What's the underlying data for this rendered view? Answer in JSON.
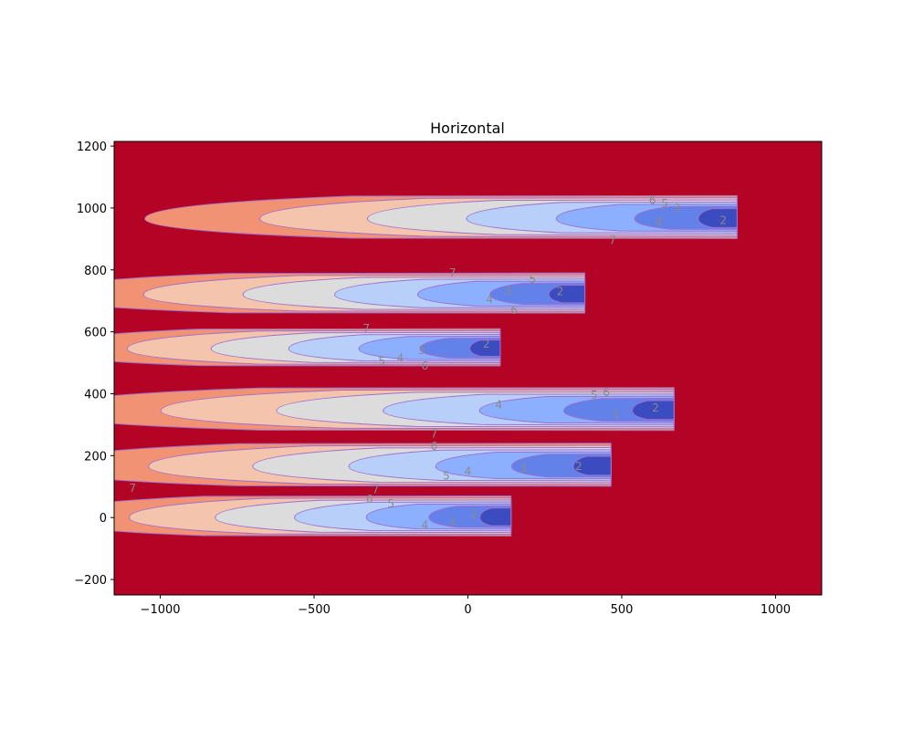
{
  "chart_data": {
    "type": "contour",
    "title": "Horizontal",
    "xlabel": "",
    "ylabel": "",
    "xlim": [
      -1150,
      1150
    ],
    "ylim": [
      -250,
      1215
    ],
    "xticks": [
      -1000,
      -500,
      0,
      500,
      1000
    ],
    "yticks": [
      -200,
      0,
      200,
      400,
      600,
      800,
      1000,
      1200
    ],
    "xtick_labels": [
      "−1000",
      "−500",
      "0",
      "500",
      "1000"
    ],
    "ytick_labels": [
      "−200",
      "0",
      "200",
      "400",
      "600",
      "800",
      "1000",
      "1200"
    ],
    "contour_levels": [
      1,
      2,
      3,
      4,
      5,
      6,
      7
    ],
    "level_colors": [
      "#3b4cc0",
      "#6282ea",
      "#8db0fe",
      "#b8d0f9",
      "#dddcdc",
      "#f5c4ac",
      "#f29274",
      "#b40426"
    ],
    "background_color": "#b40426",
    "line_color": "#9c6fcf",
    "plumes": [
      {
        "x_tip": 875,
        "y_center": 965,
        "tail_x": -1050,
        "half_width": 75,
        "label_positions": [
          [
            600,
            1025,
            "6"
          ],
          [
            640,
            1015,
            "5"
          ],
          [
            680,
            1000,
            "3"
          ],
          [
            620,
            955,
            "4"
          ],
          [
            830,
            960,
            "2"
          ],
          [
            470,
            895,
            "7"
          ]
        ]
      },
      {
        "x_tip": 380,
        "y_center": 720,
        "tail_x": -1400,
        "half_width": 70,
        "label_positions": [
          [
            -50,
            790,
            "7"
          ],
          [
            210,
            770,
            "5"
          ],
          [
            130,
            730,
            "3"
          ],
          [
            70,
            705,
            "4"
          ],
          [
            300,
            730,
            "2"
          ],
          [
            150,
            670,
            "6"
          ]
        ]
      },
      {
        "x_tip": 105,
        "y_center": 545,
        "tail_x": -1400,
        "half_width": 65,
        "label_positions": [
          [
            -330,
            610,
            "7"
          ],
          [
            -150,
            540,
            "3"
          ],
          [
            -220,
            515,
            "4"
          ],
          [
            -280,
            505,
            "5"
          ],
          [
            -140,
            490,
            "6"
          ],
          [
            60,
            560,
            "2"
          ]
        ]
      },
      {
        "x_tip": 670,
        "y_center": 345,
        "tail_x": -1400,
        "half_width": 75,
        "label_positions": [
          [
            450,
            405,
            "6"
          ],
          [
            410,
            395,
            "5"
          ],
          [
            100,
            365,
            "4"
          ],
          [
            610,
            355,
            "2"
          ],
          [
            480,
            330,
            "3"
          ],
          [
            -110,
            270,
            "7"
          ]
        ]
      },
      {
        "x_tip": 465,
        "y_center": 165,
        "tail_x": -1400,
        "half_width": 75,
        "label_positions": [
          [
            -110,
            230,
            "6"
          ],
          [
            -70,
            135,
            "5"
          ],
          [
            0,
            150,
            "4"
          ],
          [
            180,
            160,
            "3"
          ],
          [
            360,
            165,
            "2"
          ]
        ]
      },
      {
        "x_tip": 140,
        "y_center": 0,
        "tail_x": -1400,
        "half_width": 70,
        "label_positions": [
          [
            -300,
            90,
            "7"
          ],
          [
            -320,
            60,
            "6"
          ],
          [
            -250,
            45,
            "5"
          ],
          [
            -140,
            -25,
            "4"
          ],
          [
            -50,
            -15,
            "3"
          ],
          [
            20,
            10,
            "2"
          ]
        ]
      }
    ],
    "extra_labels": [
      [
        -1090,
        95,
        "7"
      ]
    ]
  }
}
